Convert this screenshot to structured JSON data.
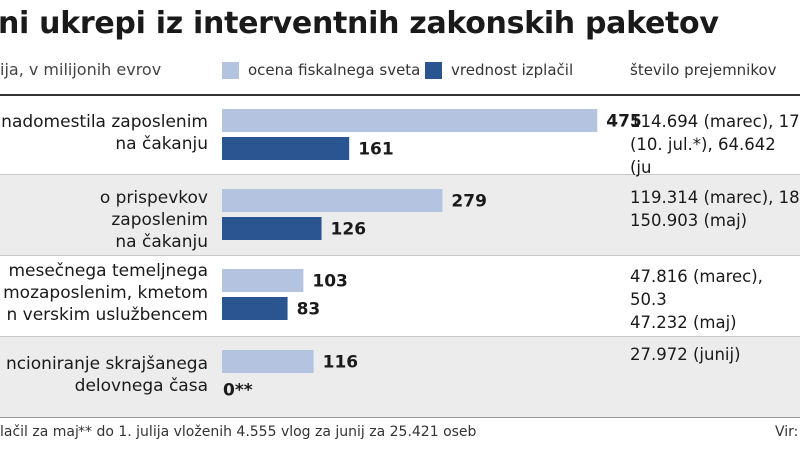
{
  "header": {
    "title": "ni ukrepi iz interventnih zakonskih paketov",
    "subtitle": "ija, v milijonih evrov",
    "recipients_header": "število  prejemnikov"
  },
  "colors": {
    "light_bar": "#b4c3e0",
    "dark_bar": "#2b5591",
    "band": "#ececec"
  },
  "chart_data": {
    "type": "bar",
    "orientation": "horizontal",
    "title": "ni ukrepi iz interventnih zakonskih paketov",
    "subtitle": "ija, v milijonih evrov",
    "categories": [
      "nadomestila zaposlenim\nna čakanju",
      "o prispevkov zaposlenim\nna čakanju",
      "mesečnega temeljnega\nmozaposlenim, kmetom\nn verskim uslužbencem",
      "ncioniranje skrajšanega\ndelovnega časa"
    ],
    "series": [
      {
        "name": "ocena fiskalnega sveta",
        "values": [
          475,
          279,
          103,
          116
        ],
        "value_labels": [
          "475",
          "279",
          "103",
          "116"
        ]
      },
      {
        "name": "vrednost izplačil",
        "values": [
          161,
          126,
          83,
          0
        ],
        "value_labels": [
          "161",
          "126",
          "83",
          "0**"
        ]
      }
    ],
    "recipients": [
      "114.694 (marec), 17\n(10. jul.*), 64.642 (ju",
      "119.314 (marec), 18\n150.903 (maj)",
      "47.816 (marec), 50.3\n47.232 (maj)",
      "27.972 (junij)"
    ],
    "legend_position": "top",
    "grid": false
  },
  "footer": {
    "note1": "lačil za maj",
    "note2": "** do 1. julija vloženih 4.555 vlog za junij za 25.421 oseb",
    "source": "Vir:"
  }
}
